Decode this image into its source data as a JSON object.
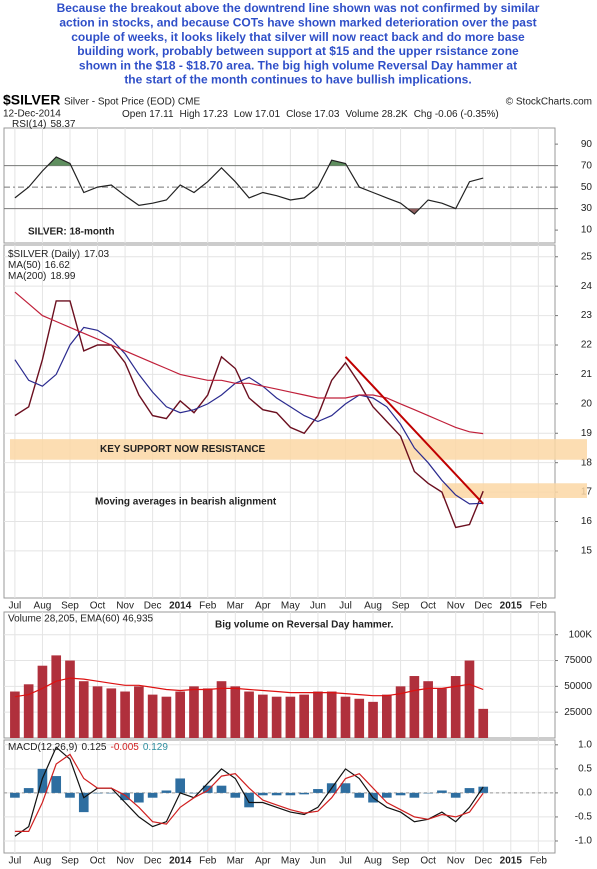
{
  "header": {
    "commentary": [
      "Because the breakout above the downtrend line shown was not confirmed by similar",
      "action in stocks, and because COTs have shown marked deterioration over the past",
      "couple of weeks, it looks likely that silver will now react back and do more base",
      "building work, probably between support at $15 and the upper rsistance zone",
      "shown in the $18 - $18.70 area. The big high volume Reversal Day hammer at",
      "the start of the month continues to have bullish implications."
    ],
    "symbol": "$SILVER",
    "description": "Silver - Spot Price (EOD) CME",
    "credit": "© StockCharts.com",
    "date": "12-Dec-2014",
    "quote": [
      "Open 17.11",
      "High 17.23",
      "Low 17.01",
      "Close 17.03",
      "Volume 28.2K",
      "Chg -0.06 (-0.35%)"
    ]
  },
  "chart_data": [
    {
      "type": "line",
      "title": "SILVER: 18-month",
      "ylim": [
        -2,
        105
      ],
      "yticks": [
        10,
        30,
        50,
        70,
        90
      ],
      "levels": [
        30,
        70
      ],
      "midline": 50,
      "overbought_color": "#5f8f5f",
      "oversold_color": "#8f5f5f",
      "series": [
        {
          "name": "RSI(14)",
          "color": "#222222",
          "values": [
            40,
            50,
            65,
            78,
            72,
            45,
            50,
            52,
            42,
            33,
            35,
            38,
            52,
            45,
            55,
            68,
            55,
            40,
            45,
            42,
            38,
            40,
            50,
            75,
            72,
            50,
            45,
            40,
            35,
            25,
            38,
            35,
            30,
            55,
            58.37,
            null,
            null,
            null,
            null,
            null
          ]
        }
      ]
    },
    {
      "type": "line",
      "categories": [
        "Jul",
        null,
        "Aug",
        null,
        "Sep",
        null,
        "Oct",
        null,
        "Nov",
        null,
        "Dec",
        null,
        "2014",
        null,
        "Feb",
        null,
        "Mar",
        null,
        "Apr",
        null,
        "May",
        null,
        "Jun",
        null,
        "Jul",
        null,
        "Aug",
        null,
        "Sep",
        null,
        "Oct",
        null,
        "Nov",
        null,
        "Dec",
        null,
        "2015",
        null,
        "Feb",
        null
      ],
      "ylim": [
        13.4,
        25.4
      ],
      "yticks": [
        15,
        16,
        17,
        18,
        19,
        20,
        21,
        22,
        23,
        24,
        25
      ],
      "grid": true,
      "series": [
        {
          "name": "$SILVER (Daily)",
          "color": "#6b0f1f",
          "values": [
            19.6,
            19.9,
            21.5,
            23.5,
            23.5,
            21.8,
            22.0,
            22.0,
            21.4,
            20.3,
            19.6,
            19.5,
            20.1,
            19.7,
            20.3,
            21.6,
            21.2,
            20.2,
            19.8,
            19.7,
            19.2,
            19.0,
            19.6,
            20.8,
            21.4,
            20.7,
            19.9,
            19.4,
            18.9,
            17.7,
            17.3,
            17.0,
            15.8,
            15.9,
            17.03,
            null,
            null,
            null,
            null,
            null
          ]
        },
        {
          "name": "MA(50)",
          "color": "#2b2b8f",
          "values": [
            21.5,
            20.8,
            20.6,
            21.0,
            22.0,
            22.6,
            22.5,
            22.2,
            21.7,
            21.0,
            20.4,
            19.9,
            19.7,
            19.8,
            20.0,
            20.3,
            20.7,
            20.9,
            20.6,
            20.2,
            19.9,
            19.6,
            19.4,
            19.6,
            20.0,
            20.3,
            20.2,
            19.9,
            19.3,
            18.5,
            18.0,
            17.4,
            16.9,
            16.6,
            16.62,
            null,
            null,
            null,
            null,
            null
          ]
        },
        {
          "name": "MA(200)",
          "color": "#c0203a",
          "values": [
            23.8,
            23.4,
            23.0,
            22.8,
            22.6,
            22.4,
            22.2,
            22.0,
            21.8,
            21.6,
            21.4,
            21.2,
            21.0,
            20.9,
            20.8,
            20.8,
            20.7,
            20.7,
            20.6,
            20.5,
            20.4,
            20.3,
            20.2,
            20.2,
            20.2,
            20.3,
            20.3,
            20.2,
            20.0,
            19.8,
            19.6,
            19.4,
            19.2,
            19.05,
            18.99,
            null,
            null,
            null,
            null,
            null
          ]
        }
      ],
      "zones": [
        {
          "label": "KEY SUPPORT NOW RESISTANCE",
          "range": [
            18.1,
            18.8
          ]
        },
        {
          "range": [
            16.8,
            17.3
          ]
        }
      ],
      "zone_color": "#fbd7a4",
      "trendline": [
        21.6,
        16.6
      ],
      "trendline_color": "#c00000",
      "note": "Moving averages in bearish alignment"
    },
    {
      "type": "bar",
      "legend": "Volume 28,205, EMA(60) 46,935",
      "ylim": [
        0,
        122000
      ],
      "yticks": [
        25000,
        50000,
        75000,
        {
          "value": 100000,
          "label": "100K"
        }
      ],
      "grid": true,
      "series": [
        {
          "type": "bar",
          "color": "#b0303c",
          "values": [
            45000,
            52000,
            70000,
            80000,
            75000,
            55000,
            50000,
            48000,
            45000,
            50000,
            42000,
            40000,
            45000,
            50000,
            48000,
            55000,
            50000,
            45000,
            42000,
            40000,
            40000,
            42000,
            45000,
            45000,
            40000,
            38000,
            35000,
            42000,
            50000,
            60000,
            55000,
            48000,
            60000,
            75000,
            28205,
            null,
            null,
            null,
            null,
            null
          ]
        },
        {
          "type": "line",
          "color": "#dd1111",
          "values": [
            40000,
            42000,
            48000,
            55000,
            58000,
            57000,
            55000,
            53000,
            51000,
            51000,
            49000,
            47000,
            46000,
            47000,
            47000,
            48000,
            48000,
            47000,
            46000,
            45000,
            44000,
            44000,
            44000,
            44000,
            43000,
            42000,
            41000,
            41000,
            43000,
            46000,
            48000,
            48000,
            50000,
            52000,
            46935,
            null,
            null,
            null,
            null,
            null
          ]
        }
      ],
      "note": "Big volume on Reversal Day hammer."
    },
    {
      "type": "line",
      "name": "MACD(12,26,9)",
      "categories": [
        "Jul",
        null,
        "Aug",
        null,
        "Sep",
        null,
        "Oct",
        null,
        "Nov",
        null,
        "Dec",
        null,
        "2014",
        null,
        "Feb",
        null,
        "Mar",
        null,
        "Apr",
        null,
        "May",
        null,
        "Jun",
        null,
        "Jul",
        null,
        "Aug",
        null,
        "Sep",
        null,
        "Oct",
        null,
        "Nov",
        null,
        "Dec",
        null,
        "2015",
        null,
        "Feb",
        null
      ],
      "ylim": [
        -1.25,
        1.1
      ],
      "yticks": [
        {
          "value": -1,
          "label": "-1.0"
        },
        -0.5,
        {
          "value": 0,
          "label": "0.0"
        },
        0.5,
        {
          "value": 1,
          "label": "1.0"
        }
      ],
      "grid": true,
      "series": [
        {
          "type": "bar",
          "color": "#2e6ea0",
          "values": [
            -0.1,
            0.1,
            0.5,
            0.35,
            -0.1,
            -0.4,
            0,
            0,
            -0.15,
            -0.2,
            -0.1,
            0.05,
            0.3,
            0,
            0.15,
            0.15,
            -0.1,
            -0.3,
            -0.05,
            -0.05,
            -0.05,
            -0.03,
            0.08,
            0.2,
            0.2,
            -0.1,
            -0.2,
            -0.1,
            -0.05,
            -0.1,
            0,
            0.05,
            -0.1,
            0.1,
            0.129,
            null,
            null,
            null,
            null,
            null
          ]
        },
        {
          "type": "line",
          "color": "#111111",
          "values": [
            -0.9,
            -0.7,
            0.3,
            0.95,
            0.7,
            -0.1,
            0.1,
            0.1,
            -0.2,
            -0.5,
            -0.7,
            -0.6,
            0.0,
            -0.1,
            0.2,
            0.5,
            0.3,
            -0.2,
            -0.2,
            -0.3,
            -0.4,
            -0.45,
            -0.3,
            0.1,
            0.5,
            0.3,
            -0.1,
            -0.3,
            -0.4,
            -0.6,
            -0.55,
            -0.4,
            -0.6,
            -0.3,
            0.125,
            null,
            null,
            null,
            null,
            null
          ]
        },
        {
          "type": "line",
          "color": "#d02020",
          "values": [
            -0.8,
            -0.8,
            -0.2,
            0.6,
            0.8,
            0.3,
            0.1,
            0.1,
            -0.05,
            -0.3,
            -0.6,
            -0.65,
            -0.3,
            -0.1,
            0.05,
            0.35,
            0.4,
            0.1,
            -0.15,
            -0.25,
            -0.35,
            -0.42,
            -0.38,
            -0.1,
            0.3,
            0.4,
            0.1,
            -0.2,
            -0.35,
            -0.5,
            -0.55,
            -0.45,
            -0.5,
            -0.4,
            -0.005,
            null,
            null,
            null,
            null,
            null
          ]
        }
      ]
    }
  ]
}
